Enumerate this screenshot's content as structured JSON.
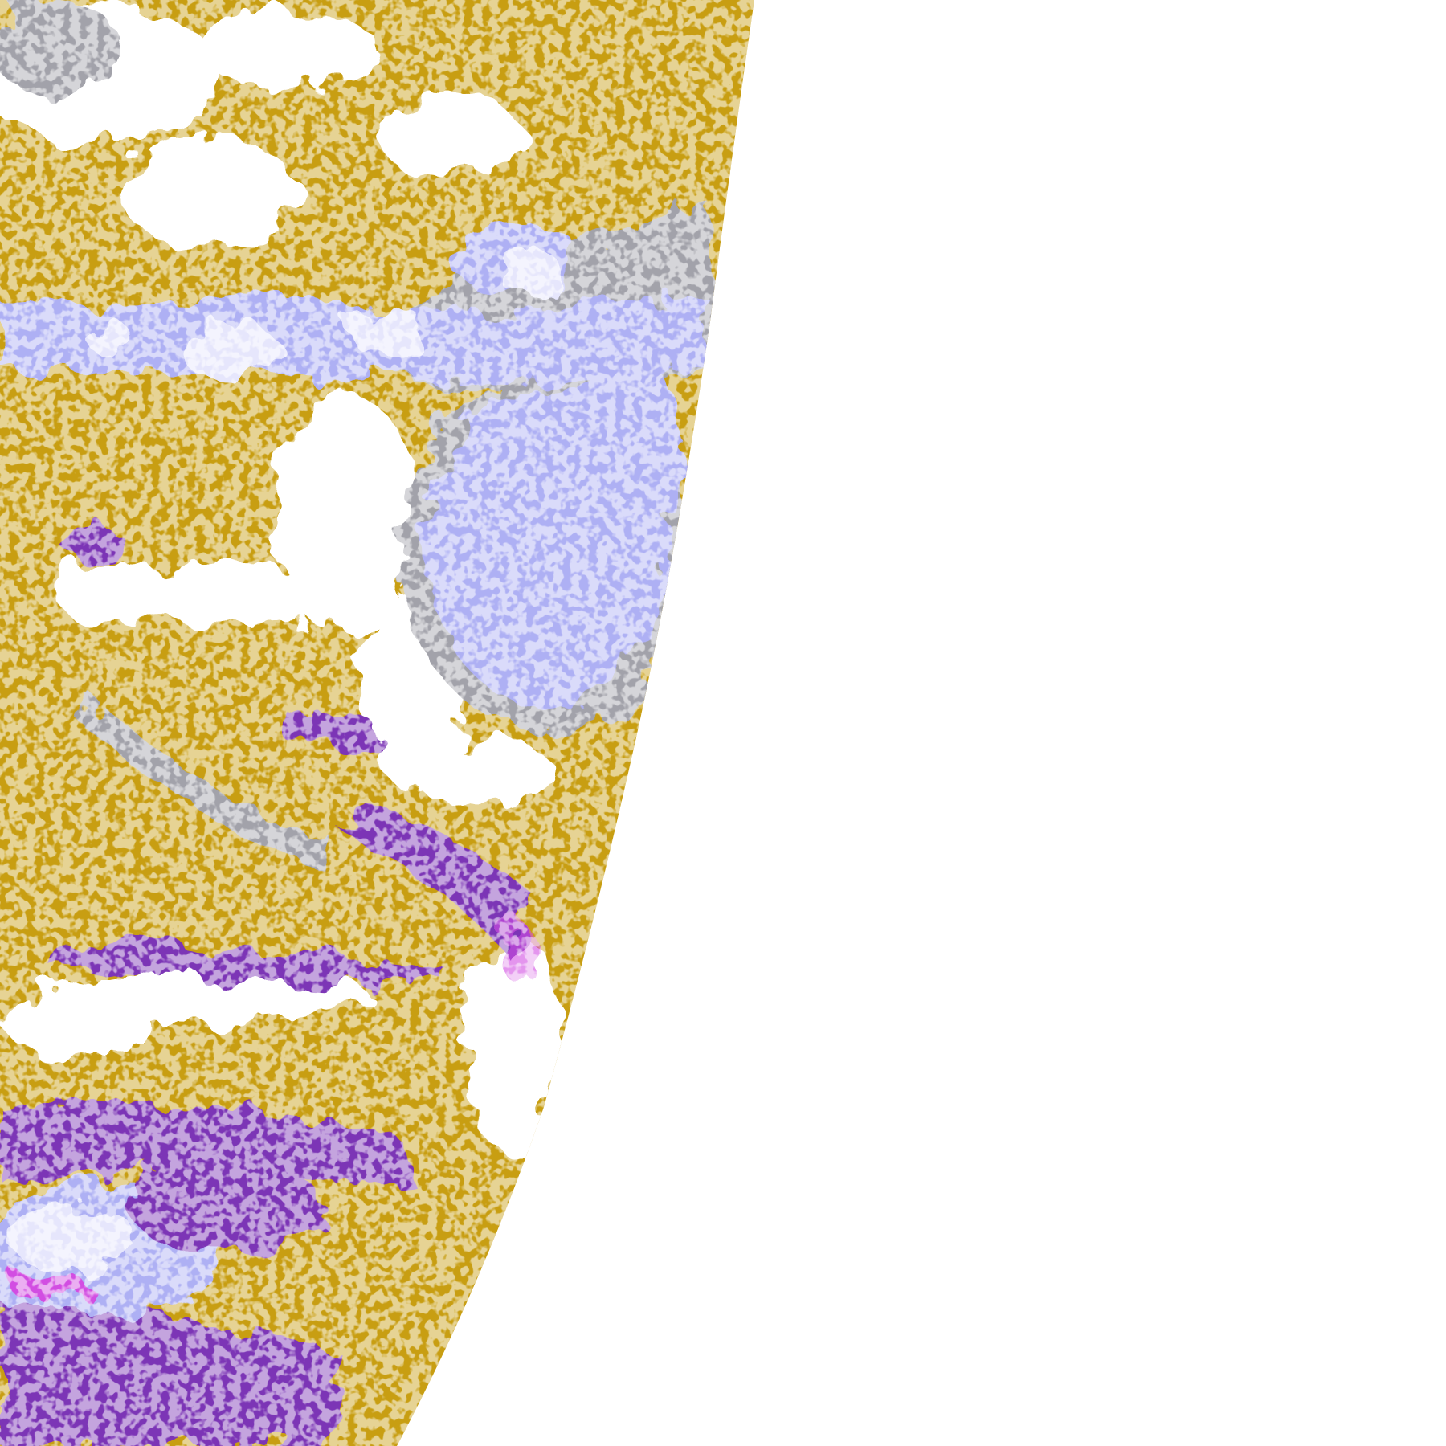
{
  "map": {
    "kind": "satellite swath classification overlay",
    "background": "#ffffff",
    "colors": {
      "gold": "#c89e12",
      "purple": "#7b36b6",
      "lavender": "#aeb0f4",
      "pale_lavender": "#e6e6fc",
      "gray": "#a2a2aa",
      "magenta": "#d24ee2"
    }
  }
}
